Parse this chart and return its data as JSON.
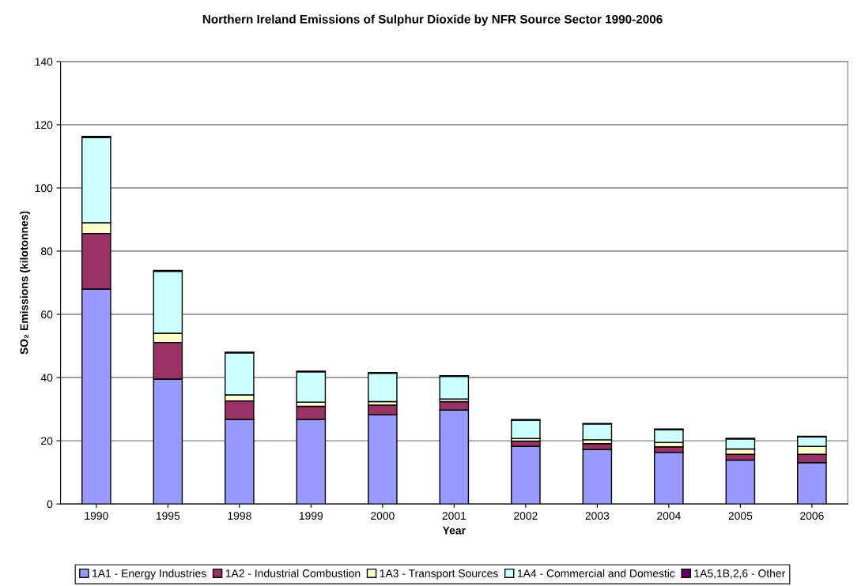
{
  "chart_data": {
    "type": "bar",
    "title": "Northern Ireland Emissions of Sulphur Dioxide by NFR Source Sector 1990-2006",
    "xlabel": "Year",
    "ylabel": "SO₂ Emissions (kilotonnes)",
    "categories": [
      "1990",
      "1995",
      "1998",
      "1999",
      "2000",
      "2001",
      "2002",
      "2003",
      "2004",
      "2005",
      "2006"
    ],
    "stacked": true,
    "ylim": [
      0,
      140
    ],
    "yticks": [
      0,
      20,
      40,
      60,
      80,
      100,
      120,
      140
    ],
    "grid": "y",
    "legend": "bottom",
    "series": [
      {
        "name": "1A1 - Energy Industries",
        "color": "#9999ff",
        "values": [
          68.0,
          39.5,
          26.7,
          26.7,
          28.2,
          29.7,
          18.2,
          17.2,
          16.3,
          13.9,
          13.1
        ]
      },
      {
        "name": "1A2 - Industrial Combustion",
        "color": "#993366",
        "values": [
          17.6,
          11.6,
          5.9,
          4.2,
          3.1,
          2.7,
          1.7,
          1.9,
          1.8,
          1.8,
          2.6
        ]
      },
      {
        "name": "1A3 - Transport Sources",
        "color": "#ffffcc",
        "values": [
          3.4,
          2.9,
          1.9,
          1.3,
          1.1,
          0.8,
          0.8,
          1.2,
          1.4,
          1.7,
          2.5
        ]
      },
      {
        "name": "1A4 - Commercial and Domestic",
        "color": "#ccffff",
        "values": [
          27.0,
          19.6,
          13.3,
          9.6,
          9.0,
          7.2,
          5.8,
          5.0,
          4.0,
          3.2,
          3.0
        ]
      },
      {
        "name": "1A5,1B,2,6 - Other",
        "color": "#660066",
        "values": [
          0.3,
          0.3,
          0.2,
          0.2,
          0.2,
          0.2,
          0.2,
          0.2,
          0.2,
          0.2,
          0.2
        ]
      }
    ]
  }
}
